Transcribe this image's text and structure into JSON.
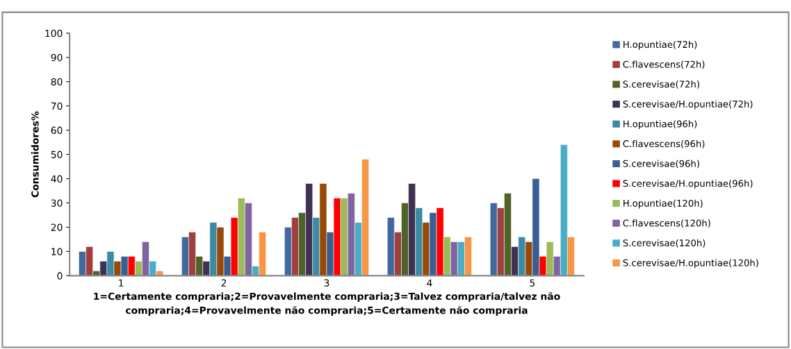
{
  "chart_data": {
    "type": "bar",
    "ylabel": "Consumidores%",
    "xlabel": "1=Certamente compraria;2=Provavelmente compraria;3=Talvez compraria/talvez não\ncompraria;4=Provavelmente não compraria;5=Certamente não compraria",
    "categories": [
      "1",
      "2",
      "3",
      "4",
      "5"
    ],
    "ylim": [
      0,
      100
    ],
    "yticks": [
      0,
      10,
      20,
      30,
      40,
      50,
      60,
      70,
      80,
      90,
      100
    ],
    "grid": false,
    "legend": "right",
    "series": [
      {
        "name": "H.opuntiae(72h)",
        "color": "#4069a0",
        "values": [
          10,
          16,
          20,
          24,
          30
        ]
      },
      {
        "name": "C.flavescens(72h)",
        "color": "#a0403e",
        "values": [
          12,
          18,
          24,
          18,
          28
        ]
      },
      {
        "name": "S.cerevisae(72h)",
        "color": "#4f6228",
        "values": [
          2,
          8,
          26,
          30,
          34
        ]
      },
      {
        "name": "S.cerevisae/H.opuntiae(72h)",
        "color": "#403152",
        "values": [
          6,
          6,
          38,
          38,
          12
        ]
      },
      {
        "name": "H.opuntiae(96h)",
        "color": "#3a8ba3",
        "values": [
          10,
          22,
          24,
          28,
          16
        ]
      },
      {
        "name": "C.flavescens(96h)",
        "color": "#984807",
        "values": [
          6,
          20,
          38,
          22,
          14
        ]
      },
      {
        "name": "S.cerevisae(96h)",
        "color": "#375f92",
        "values": [
          8,
          8,
          18,
          26,
          40
        ]
      },
      {
        "name": "S.cerevisae/H.opuntiae(96h)",
        "color": "#ff0000",
        "values": [
          8,
          24,
          32,
          28,
          8
        ]
      },
      {
        "name": "H.opuntiae(120h)",
        "color": "#9bbb59",
        "values": [
          6,
          32,
          32,
          16,
          14
        ]
      },
      {
        "name": "C.flavescens(120h)",
        "color": "#8064a2",
        "values": [
          14,
          30,
          34,
          14,
          8
        ]
      },
      {
        "name": "S.cerevisae(120h)",
        "color": "#4bacc6",
        "values": [
          6,
          4,
          22,
          14,
          54
        ]
      },
      {
        "name": "S.cerevisae/H.opuntiae(120h)",
        "color": "#f79646",
        "values": [
          2,
          18,
          48,
          16,
          16
        ]
      }
    ]
  }
}
